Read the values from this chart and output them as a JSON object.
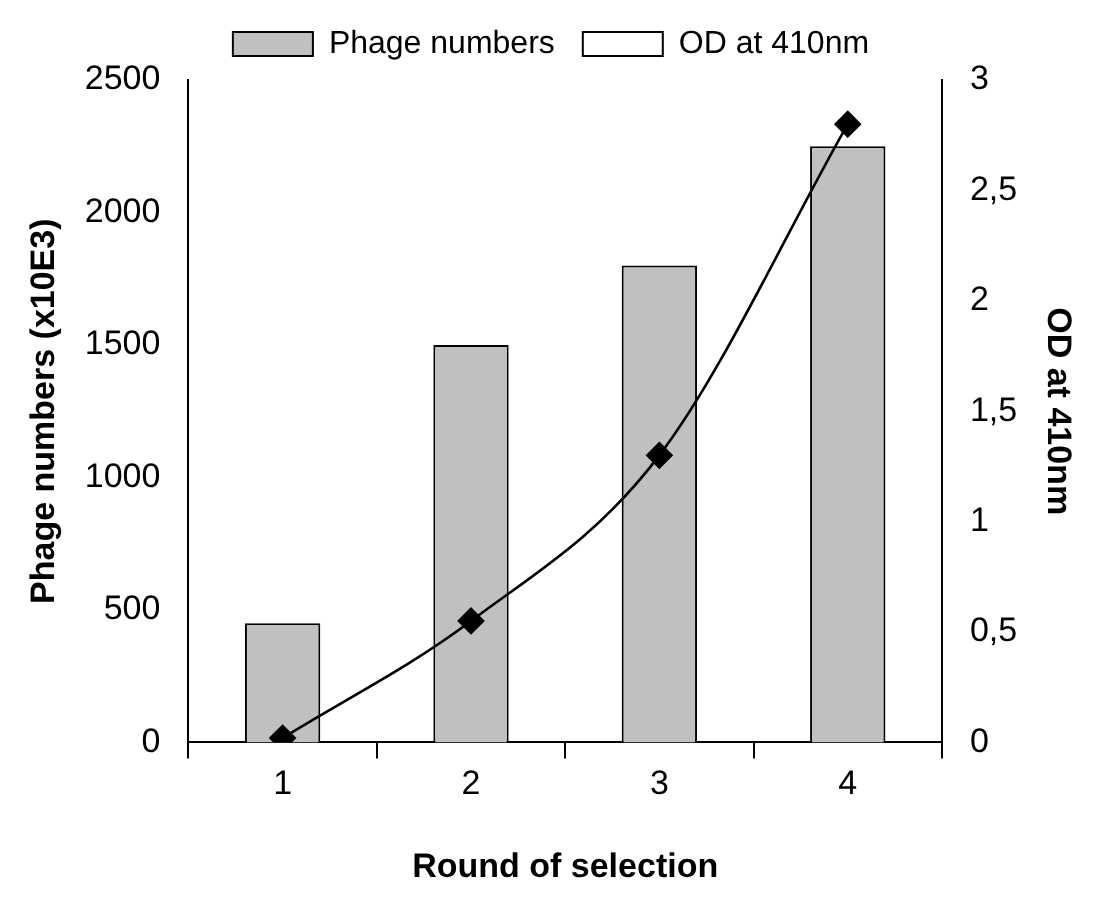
{
  "chart_data": {
    "type": "bar",
    "xlabel": "Round of selection",
    "ylabel": "Phage numbers (x10E3)",
    "y2label": "OD at 410nm",
    "categories": [
      "1",
      "2",
      "3",
      "4"
    ],
    "series": [
      {
        "name": "Phage numbers",
        "color": "#c0c0c0",
        "values": [
          450,
          1500,
          1800,
          2250
        ]
      },
      {
        "name": "OD at 410nm",
        "type": "line",
        "axis": "y2",
        "color": "#000000",
        "values": [
          0.02,
          0.55,
          1.3,
          2.8
        ],
        "marker": "diamond"
      }
    ],
    "ylim": [
      0,
      2500
    ],
    "yticks": [
      0,
      500,
      1000,
      1500,
      2000,
      2500
    ],
    "y2lim": [
      0,
      3
    ],
    "y2ticks": [
      0,
      {
        "value": 0.5,
        "label": "0,5"
      },
      1,
      {
        "value": 1.5,
        "label": "1,5"
      },
      2,
      {
        "value": 2.5,
        "label": "2,5"
      },
      3
    ],
    "grid": false,
    "legend": "top"
  }
}
